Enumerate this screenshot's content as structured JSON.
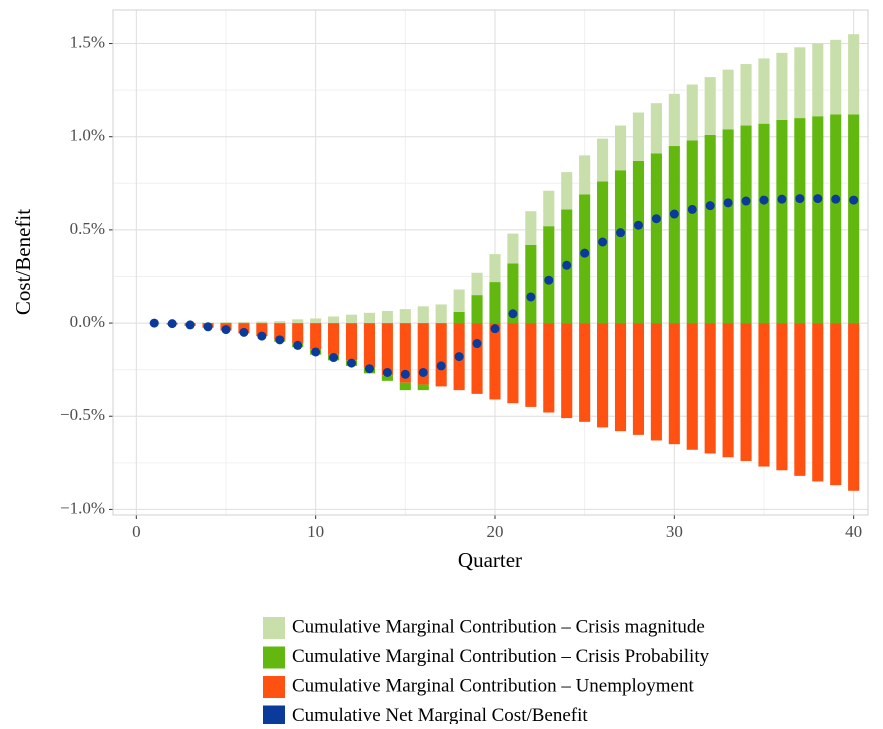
{
  "chart_data": {
    "type": "bar",
    "x_label": "Quarter",
    "y_label": "Cost/Benefit",
    "x": [
      1,
      2,
      3,
      4,
      5,
      6,
      7,
      8,
      9,
      10,
      11,
      12,
      13,
      14,
      15,
      16,
      17,
      18,
      19,
      20,
      21,
      22,
      23,
      24,
      25,
      26,
      27,
      28,
      29,
      30,
      31,
      32,
      33,
      34,
      35,
      36,
      37,
      38,
      39,
      40
    ],
    "series": [
      {
        "name": "Cumulative Marginal Contribution – Crisis magnitude",
        "color": "#c9dfab",
        "stacked": true,
        "values": [
          0,
          0,
          0.002,
          0.003,
          0.005,
          0.006,
          0.008,
          0.01,
          0.02,
          0.025,
          0.035,
          0.045,
          0.055,
          0.065,
          0.075,
          0.09,
          0.1,
          0.12,
          0.12,
          0.15,
          0.16,
          0.18,
          0.19,
          0.2,
          0.21,
          0.23,
          0.24,
          0.26,
          0.27,
          0.28,
          0.3,
          0.31,
          0.32,
          0.33,
          0.35,
          0.36,
          0.38,
          0.39,
          0.4,
          0.43
        ]
      },
      {
        "name": "Cumulative Marginal Contribution – Crisis Probability",
        "color": "#62b80e",
        "stacked": true,
        "values": [
          0,
          0,
          0,
          0,
          0,
          0,
          0,
          -0.01,
          -0.02,
          -0.03,
          -0.03,
          -0.03,
          -0.03,
          -0.03,
          -0.04,
          -0.03,
          0,
          0.06,
          0.15,
          0.22,
          0.32,
          0.42,
          0.52,
          0.61,
          0.69,
          0.76,
          0.82,
          0.87,
          0.91,
          0.95,
          0.98,
          1.01,
          1.04,
          1.06,
          1.07,
          1.09,
          1.1,
          1.11,
          1.12,
          1.12
        ]
      },
      {
        "name": "Cumulative Marginal Contribution – Unemployment",
        "color": "#ff5212",
        "stacked": true,
        "values": [
          -0.002,
          -0.008,
          -0.015,
          -0.025,
          -0.04,
          -0.055,
          -0.07,
          -0.09,
          -0.11,
          -0.14,
          -0.17,
          -0.2,
          -0.24,
          -0.28,
          -0.32,
          -0.33,
          -0.34,
          -0.36,
          -0.38,
          -0.41,
          -0.43,
          -0.45,
          -0.48,
          -0.51,
          -0.53,
          -0.56,
          -0.58,
          -0.6,
          -0.63,
          -0.65,
          -0.68,
          -0.7,
          -0.72,
          -0.74,
          -0.77,
          -0.79,
          -0.82,
          -0.85,
          -0.87,
          -0.9
        ]
      },
      {
        "name": "Cumulative Net Marginal Cost/Benefit",
        "color": "#0a3a9a",
        "stacked": false,
        "values": [
          0,
          -0.003,
          -0.01,
          -0.02,
          -0.035,
          -0.05,
          -0.07,
          -0.09,
          -0.12,
          -0.155,
          -0.185,
          -0.215,
          -0.245,
          -0.265,
          -0.275,
          -0.265,
          -0.23,
          -0.18,
          -0.11,
          -0.03,
          0.05,
          0.14,
          0.23,
          0.31,
          0.375,
          0.435,
          0.485,
          0.525,
          0.56,
          0.585,
          0.61,
          0.63,
          0.645,
          0.655,
          0.66,
          0.665,
          0.668,
          0.668,
          0.665,
          0.66
        ]
      }
    ],
    "xlim": [
      -1.3,
      40.8
    ],
    "xticks": [
      0,
      10,
      20,
      30,
      40
    ],
    "ylim": [
      -1.03,
      1.68
    ],
    "yticks": [
      {
        "value": -1.0,
        "label": "−1.0%"
      },
      {
        "value": -0.5,
        "label": "−0.5%"
      },
      {
        "value": 0,
        "label": "0.0%"
      },
      {
        "value": 0.5,
        "label": "0.5%"
      },
      {
        "value": 1.0,
        "label": "1.0%"
      },
      {
        "value": 1.5,
        "label": "1.5%"
      }
    ],
    "grid": true,
    "legend": "bottom"
  }
}
